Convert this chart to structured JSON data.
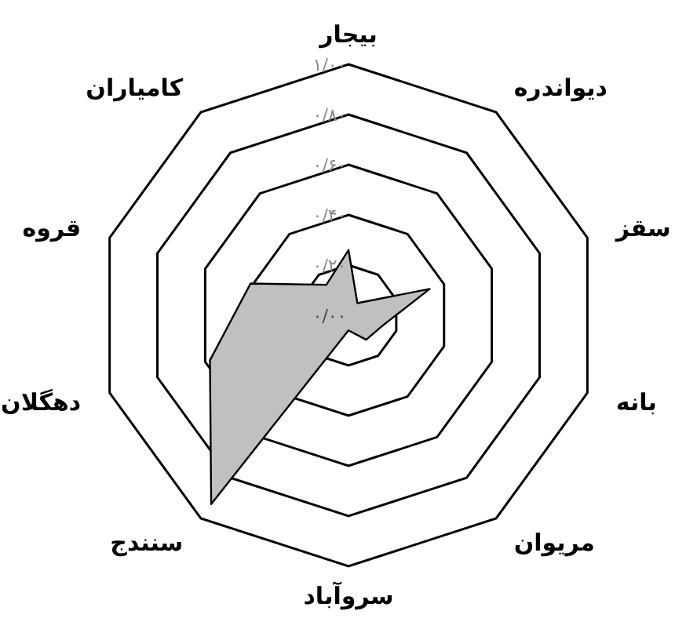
{
  "chart_data": {
    "type": "radar",
    "categories": [
      "بیجار",
      "دیواندره",
      "سقز",
      "بانه",
      "مریوان",
      "سروآباد",
      "سنندج",
      "دهگلان",
      "قروه",
      "کامیاران"
    ],
    "series": [
      {
        "color": "#c0c0c0",
        "values": [
          0.26,
          0.06,
          0.34,
          0.14,
          0.12,
          0.06,
          0.93,
          0.58,
          0.41,
          0.15
        ]
      }
    ],
    "ylim": [
      0,
      1
    ],
    "yticks": [
      {
        "value": 0,
        "label": "۰/۰۰"
      },
      {
        "value": 0.2,
        "label": "۰/۲۰"
      },
      {
        "value": 0.4,
        "label": "۰/۴۰"
      },
      {
        "value": 0.6,
        "label": "۰/۶۰"
      },
      {
        "value": 0.8,
        "label": "۰/۸۰"
      },
      {
        "value": 1,
        "label": "۱/۰۰"
      }
    ],
    "grid": true
  }
}
